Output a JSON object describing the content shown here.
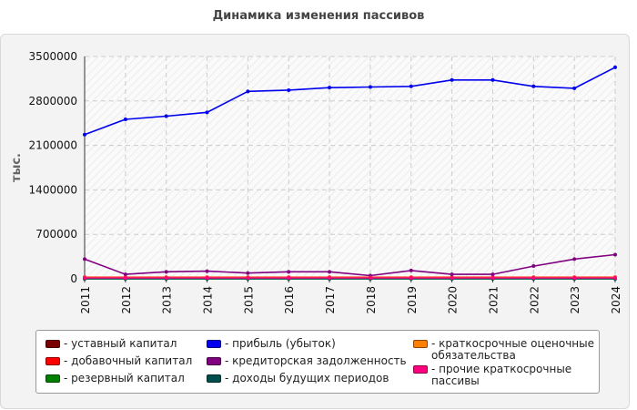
{
  "chart_data": {
    "type": "line",
    "title": "Динамика изменения пассивов",
    "xlabel": "",
    "ylabel": "тыс.",
    "x": [
      "2011",
      "2012",
      "2013",
      "2014",
      "2015",
      "2016",
      "2017",
      "2018",
      "2019",
      "2020",
      "2021",
      "2022",
      "2023",
      "2024"
    ],
    "ylim": [
      0,
      3500000
    ],
    "yticks": [
      "0",
      "700000",
      "1400000",
      "2100000",
      "2800000",
      "3500000"
    ],
    "grid": true,
    "legend_position": "bottom",
    "series": [
      {
        "name": "уставный капитал",
        "color": "#7a0000",
        "values": [
          10000,
          10000,
          10000,
          10000,
          10000,
          10000,
          10000,
          10000,
          10000,
          10000,
          10000,
          10000,
          10000,
          10000
        ]
      },
      {
        "name": "добавочный капитал",
        "color": "#ff0000",
        "values": [
          25000,
          25000,
          25000,
          25000,
          25000,
          25000,
          25000,
          25000,
          25000,
          25000,
          25000,
          25000,
          25000,
          25000
        ]
      },
      {
        "name": "резервный капитал",
        "color": "#008000",
        "values": [
          2000,
          2000,
          2000,
          2000,
          2000,
          2000,
          2000,
          2000,
          2000,
          2000,
          2000,
          2000,
          2000,
          2000
        ]
      },
      {
        "name": "прибыль (убыток)",
        "color": "#0000ee",
        "values": [
          2270000,
          2510000,
          2560000,
          2620000,
          2950000,
          2970000,
          3010000,
          3020000,
          3030000,
          3130000,
          3130000,
          3030000,
          3000000,
          3330000
        ]
      },
      {
        "name": "кредиторская задолженность",
        "color": "#800080",
        "values": [
          310000,
          70000,
          110000,
          120000,
          90000,
          110000,
          110000,
          50000,
          130000,
          70000,
          70000,
          200000,
          310000,
          380000
        ]
      },
      {
        "name": "доходы будущих периодов",
        "color": "#004d4d",
        "values": [
          0,
          0,
          0,
          0,
          0,
          0,
          0,
          0,
          0,
          0,
          0,
          0,
          0,
          0
        ]
      },
      {
        "name": "краткосрочные оценочные обязательства",
        "color": "#ff8000",
        "values": [
          18000,
          18000,
          18000,
          18000,
          18000,
          18000,
          18000,
          18000,
          18000,
          18000,
          18000,
          18000,
          18000,
          18000
        ]
      },
      {
        "name": "прочие краткосрочные пассивы",
        "color": "#ff0080",
        "values": [
          15000,
          15000,
          15000,
          15000,
          15000,
          15000,
          15000,
          15000,
          15000,
          15000,
          15000,
          15000,
          15000,
          15000
        ]
      }
    ]
  }
}
